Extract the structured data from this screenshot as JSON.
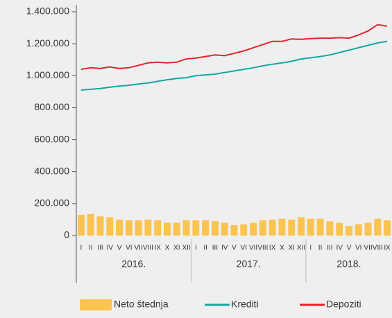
{
  "chart_data": {
    "type": "bar",
    "categories": [
      "I",
      "II",
      "III",
      "IV",
      "V",
      "VI",
      "VII",
      "VIII",
      "IX",
      "X",
      "XI",
      "XII",
      "I",
      "II",
      "III",
      "IV",
      "V",
      "VI",
      "VII",
      "VIII",
      "IX",
      "X",
      "XI",
      "XII",
      "I",
      "II",
      "III",
      "IV",
      "V",
      "VI",
      "VII",
      "VIII",
      "IX"
    ],
    "years": [
      "2016.",
      "2017.",
      "2018."
    ],
    "series": [
      {
        "name": "Neto štednja",
        "type": "bar",
        "color": "#fbc34f",
        "values": [
          130000,
          135000,
          120000,
          115000,
          100000,
          95000,
          95000,
          100000,
          95000,
          80000,
          80000,
          95000,
          95000,
          95000,
          90000,
          80000,
          65000,
          70000,
          80000,
          95000,
          100000,
          105000,
          100000,
          115000,
          105000,
          105000,
          90000,
          80000,
          60000,
          70000,
          80000,
          105000,
          95000
        ]
      },
      {
        "name": "Krediti",
        "type": "line",
        "color": "#14a7a0",
        "values": [
          910000,
          915000,
          920000,
          928000,
          935000,
          940000,
          948000,
          955000,
          965000,
          975000,
          983000,
          988000,
          1000000,
          1005000,
          1010000,
          1020000,
          1030000,
          1040000,
          1050000,
          1062000,
          1072000,
          1080000,
          1090000,
          1105000,
          1112000,
          1120000,
          1130000,
          1145000,
          1160000,
          1175000,
          1190000,
          1205000,
          1215000
        ]
      },
      {
        "name": "Depoziti",
        "type": "line",
        "color": "#e3242b",
        "values": [
          1040000,
          1050000,
          1045000,
          1055000,
          1045000,
          1050000,
          1065000,
          1080000,
          1085000,
          1080000,
          1085000,
          1105000,
          1110000,
          1120000,
          1130000,
          1125000,
          1140000,
          1155000,
          1175000,
          1195000,
          1215000,
          1215000,
          1230000,
          1228000,
          1232000,
          1235000,
          1235000,
          1238000,
          1235000,
          1255000,
          1280000,
          1320000,
          1310000
        ]
      }
    ],
    "ylim": [
      0,
      1400000
    ],
    "yticks": [
      0,
      {
        "value": 200000,
        "label": "200.000"
      },
      {
        "value": 400000,
        "label": "400.000"
      },
      {
        "value": 600000,
        "label": "600.000"
      },
      {
        "value": 800000,
        "label": "800.000"
      },
      {
        "value": 1000000,
        "label": "1.000.000"
      },
      {
        "value": 1200000,
        "label": "1.200.000"
      },
      {
        "value": 1400000,
        "label": "1.400.000"
      }
    ],
    "legend": "bottom"
  }
}
